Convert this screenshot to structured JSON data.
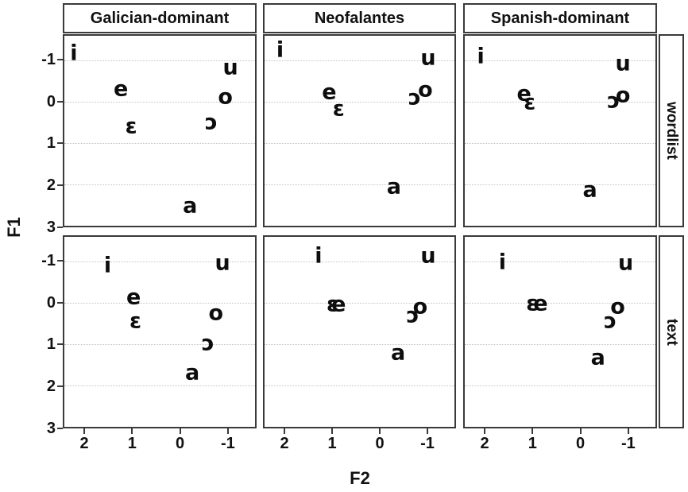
{
  "chart_data": {
    "type": "scatter",
    "title": "",
    "xlabel": "F2",
    "ylabel": "F1",
    "x_ticks": [
      2,
      1,
      0,
      -1
    ],
    "y_ticks": [
      -1,
      0,
      1,
      2,
      3
    ],
    "x_range": [
      2.45,
      -1.6
    ],
    "y_range": [
      -1.6,
      3.0
    ],
    "x_axis_reversed": true,
    "y_axis_reversed": true,
    "grid": "horizontal-only",
    "columns": [
      "Galician-dominant",
      "Neofalantes",
      "Spanish-dominant"
    ],
    "rows": [
      "wordlist",
      "text"
    ],
    "panels": [
      {
        "column": "Galician-dominant",
        "row": "wordlist",
        "points": [
          {
            "label": "i",
            "f2": 2.25,
            "f1": -1.15
          },
          {
            "label": "e",
            "f2": 1.25,
            "f1": -0.3
          },
          {
            "label": "ɛ",
            "f2": 1.03,
            "f1": 0.61
          },
          {
            "label": "a",
            "f2": -0.22,
            "f1": 2.54
          },
          {
            "label": "ɔ",
            "f2": -0.67,
            "f1": 0.51
          },
          {
            "label": "o",
            "f2": -0.97,
            "f1": -0.1
          },
          {
            "label": "u",
            "f2": -1.08,
            "f1": -0.82
          }
        ]
      },
      {
        "column": "Neofalantes",
        "row": "wordlist",
        "points": [
          {
            "label": "i",
            "f2": 2.12,
            "f1": -1.23
          },
          {
            "label": "e",
            "f2": 1.07,
            "f1": -0.21
          },
          {
            "label": "ɛ",
            "f2": 0.87,
            "f1": 0.19
          },
          {
            "label": "a",
            "f2": -0.31,
            "f1": 2.07
          },
          {
            "label": "ɔ",
            "f2": -0.75,
            "f1": -0.08
          },
          {
            "label": "o",
            "f2": -0.98,
            "f1": -0.28
          },
          {
            "label": "u",
            "f2": -1.04,
            "f1": -1.05
          }
        ]
      },
      {
        "column": "Spanish-dominant",
        "row": "wordlist",
        "points": [
          {
            "label": "i",
            "f2": 2.11,
            "f1": -1.08
          },
          {
            "label": "e",
            "f2": 1.19,
            "f1": -0.18
          },
          {
            "label": "ɛ",
            "f2": 1.07,
            "f1": 0.04
          },
          {
            "label": "a",
            "f2": -0.21,
            "f1": 2.16
          },
          {
            "label": "ɔ",
            "f2": -0.71,
            "f1": -0.01
          },
          {
            "label": "o",
            "f2": -0.91,
            "f1": -0.14
          },
          {
            "label": "u",
            "f2": -0.91,
            "f1": -0.9
          }
        ]
      },
      {
        "column": "Galician-dominant",
        "row": "text",
        "points": [
          {
            "label": "i",
            "f2": 1.53,
            "f1": -0.88
          },
          {
            "label": "e",
            "f2": 0.98,
            "f1": -0.12
          },
          {
            "label": "ɛ",
            "f2": 0.94,
            "f1": 0.46
          },
          {
            "label": "a",
            "f2": -0.27,
            "f1": 1.71
          },
          {
            "label": "ɔ",
            "f2": -0.6,
            "f1": 0.99
          },
          {
            "label": "o",
            "f2": -0.77,
            "f1": 0.27
          },
          {
            "label": "u",
            "f2": -0.91,
            "f1": -0.95
          }
        ]
      },
      {
        "column": "Neofalantes",
        "row": "text",
        "points": [
          {
            "label": "i",
            "f2": 1.3,
            "f1": -1.11
          },
          {
            "label": "ɛ",
            "f2": 1.0,
            "f1": 0.06
          },
          {
            "label": "e",
            "f2": 0.87,
            "f1": 0.06
          },
          {
            "label": "a",
            "f2": -0.4,
            "f1": 1.23
          },
          {
            "label": "ɔ",
            "f2": -0.71,
            "f1": 0.33
          },
          {
            "label": "o",
            "f2": -0.87,
            "f1": 0.12
          },
          {
            "label": "u",
            "f2": -1.04,
            "f1": -1.11
          }
        ]
      },
      {
        "column": "Spanish-dominant",
        "row": "text",
        "points": [
          {
            "label": "i",
            "f2": 1.65,
            "f1": -0.96
          },
          {
            "label": "ɛ",
            "f2": 1.02,
            "f1": 0.03
          },
          {
            "label": "e",
            "f2": 0.84,
            "f1": 0.03
          },
          {
            "label": "a",
            "f2": -0.38,
            "f1": 1.34
          },
          {
            "label": "ɔ",
            "f2": -0.64,
            "f1": 0.46
          },
          {
            "label": "o",
            "f2": -0.8,
            "f1": 0.12
          },
          {
            "label": "u",
            "f2": -0.97,
            "f1": -0.95
          }
        ]
      }
    ],
    "colors": {
      "text": "#0d0d0d",
      "border": "#3a3a3a",
      "gridline": "#c3c3c3",
      "background": "#ffffff"
    }
  }
}
